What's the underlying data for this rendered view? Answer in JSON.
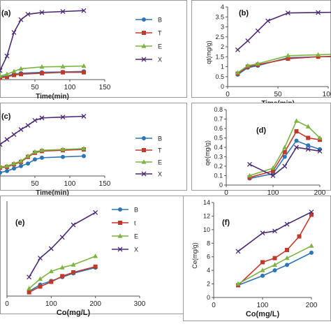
{
  "colors": {
    "B": "#2e75b6",
    "T": "#c0392b",
    "E": "#7cb342",
    "X": "#4b2a73"
  },
  "chart_data": [
    {
      "panel_label": "(a)",
      "type": "line",
      "xlabel": "Time(min)",
      "ylabel": "",
      "xlim": [
        0,
        150
      ],
      "ylim": [
        0,
        4
      ],
      "xticks": [
        "50",
        "100",
        "150"
      ],
      "yticks": [],
      "legend": {
        "placement": "right",
        "entries": [
          "B",
          "T",
          "E",
          "X"
        ]
      },
      "series": [
        {
          "name": "B",
          "x": [
            0,
            10,
            20,
            30,
            60,
            90,
            120
          ],
          "y": [
            0.15,
            0.2,
            0.3,
            0.35,
            0.4,
            0.42,
            0.45
          ]
        },
        {
          "name": "T",
          "x": [
            0,
            10,
            20,
            30,
            60,
            90,
            120
          ],
          "y": [
            0.1,
            0.15,
            0.25,
            0.3,
            0.35,
            0.4,
            0.4
          ]
        },
        {
          "name": "E",
          "x": [
            0,
            10,
            20,
            30,
            60,
            90,
            120
          ],
          "y": [
            0.2,
            0.3,
            0.45,
            0.6,
            0.7,
            0.72,
            0.75
          ]
        },
        {
          "name": "X",
          "x": [
            0,
            10,
            20,
            30,
            40,
            60,
            90,
            120
          ],
          "y": [
            0.5,
            1.3,
            2.6,
            3.3,
            3.6,
            3.7,
            3.75,
            3.8
          ]
        }
      ]
    },
    {
      "panel_label": "(b)",
      "type": "line",
      "xlabel": "Time(min)",
      "ylabel": "qt(mg/g)",
      "xlim": [
        0,
        100
      ],
      "ylim": [
        0,
        4
      ],
      "xticks": [
        "0",
        "50",
        "100"
      ],
      "yticks": [
        "0",
        "0.5",
        "1",
        "1.5",
        "2",
        "2.5",
        "3",
        "3.5",
        "4"
      ],
      "series": [
        {
          "name": "B",
          "x": [
            10,
            20,
            30,
            60,
            90,
            120
          ],
          "y": [
            0.6,
            0.95,
            1.05,
            1.45,
            1.5,
            1.55
          ]
        },
        {
          "name": "T",
          "x": [
            10,
            20,
            30,
            60,
            90,
            120
          ],
          "y": [
            0.65,
            1.0,
            1.1,
            1.4,
            1.5,
            1.5
          ]
        },
        {
          "name": "E",
          "x": [
            10,
            20,
            30,
            60,
            90,
            120
          ],
          "y": [
            0.7,
            1.05,
            1.15,
            1.55,
            1.6,
            1.65
          ]
        },
        {
          "name": "X",
          "x": [
            10,
            20,
            30,
            40,
            60,
            90,
            120
          ],
          "y": [
            1.85,
            2.3,
            2.8,
            3.3,
            3.7,
            3.72,
            3.75
          ]
        }
      ]
    },
    {
      "panel_label": "(c)",
      "type": "line",
      "xlabel": "Time(min)",
      "ylabel": "",
      "xlim": [
        0,
        150
      ],
      "ylim": [
        0,
        4
      ],
      "xticks": [
        "50",
        "100",
        "150"
      ],
      "yticks": [],
      "legend": {
        "placement": "right",
        "entries": [
          "B",
          "T",
          "E",
          "X"
        ]
      },
      "series": [
        {
          "name": "B",
          "x": [
            0,
            10,
            20,
            30,
            40,
            50,
            60,
            90,
            120
          ],
          "y": [
            0.2,
            0.3,
            0.45,
            0.6,
            0.75,
            1.0,
            1.1,
            1.15,
            1.2
          ]
        },
        {
          "name": "T",
          "x": [
            0,
            10,
            20,
            30,
            40,
            50,
            60,
            90,
            120
          ],
          "y": [
            0.5,
            0.55,
            0.7,
            0.85,
            1.15,
            1.4,
            1.5,
            1.55,
            1.6
          ]
        },
        {
          "name": "E",
          "x": [
            0,
            10,
            20,
            30,
            40,
            50,
            60,
            90,
            120
          ],
          "y": [
            0.55,
            0.6,
            0.75,
            0.9,
            1.2,
            1.45,
            1.55,
            1.6,
            1.65
          ]
        },
        {
          "name": "X",
          "x": [
            0,
            10,
            20,
            30,
            40,
            50,
            60,
            90,
            120
          ],
          "y": [
            1.9,
            2.2,
            2.5,
            2.8,
            3.05,
            3.35,
            3.5,
            3.55,
            3.6
          ]
        }
      ]
    },
    {
      "panel_label": "(d)",
      "type": "line",
      "xlabel": "Co(mg/L)",
      "ylabel": "qe(mg/g)",
      "xlim": [
        0,
        200
      ],
      "ylim": [
        0,
        0.8
      ],
      "xticks": [
        "0",
        "100",
        "200"
      ],
      "yticks": [
        "0",
        "0.1",
        "0.2",
        "0.3",
        "0.4",
        "0.5",
        "0.6",
        "0.7",
        "0.8"
      ],
      "series": [
        {
          "name": "B",
          "x": [
            50,
            100,
            125,
            150,
            175,
            200
          ],
          "y": [
            0.07,
            0.12,
            0.3,
            0.47,
            0.42,
            0.38
          ]
        },
        {
          "name": "T",
          "x": [
            50,
            100,
            125,
            150,
            175,
            200
          ],
          "y": [
            0.08,
            0.15,
            0.35,
            0.57,
            0.5,
            0.48
          ]
        },
        {
          "name": "E",
          "x": [
            50,
            100,
            125,
            150,
            175,
            200
          ],
          "y": [
            0.1,
            0.18,
            0.4,
            0.68,
            0.62,
            0.5
          ]
        },
        {
          "name": "X",
          "x": [
            50,
            100,
            125,
            150,
            175,
            200
          ],
          "y": [
            0.22,
            0.1,
            0.2,
            0.4,
            0.38,
            0.36
          ]
        }
      ]
    },
    {
      "panel_label": "(e)",
      "type": "line",
      "xlabel": "Co(mg/L)",
      "ylabel": "",
      "xlim": [
        0,
        300
      ],
      "ylim": [
        0,
        10
      ],
      "xticks": [
        "0",
        "100",
        "200",
        "300"
      ],
      "yticks": [],
      "legend": {
        "placement": "right",
        "entries": [
          "B",
          "t",
          "E",
          "X"
        ]
      },
      "series": [
        {
          "name": "B",
          "x": [
            50,
            75,
            100,
            125,
            150,
            200
          ],
          "y": [
            0.5,
            1.2,
            1.6,
            2.0,
            2.4,
            3.0
          ]
        },
        {
          "name": "T",
          "x": [
            50,
            75,
            100,
            125,
            150,
            200
          ],
          "y": [
            0.4,
            1.0,
            1.5,
            2.1,
            2.5,
            3.1
          ]
        },
        {
          "name": "E",
          "x": [
            50,
            75,
            100,
            125,
            150,
            200
          ],
          "y": [
            0.8,
            1.8,
            2.6,
            3.0,
            3.3,
            4.2
          ]
        },
        {
          "name": "X",
          "x": [
            50,
            75,
            100,
            125,
            150,
            200
          ],
          "y": [
            2.0,
            4.0,
            5.0,
            6.2,
            7.5,
            8.8
          ]
        }
      ]
    },
    {
      "panel_label": "(f)",
      "type": "line",
      "xlabel": "Co(mg/L)",
      "ylabel": "Ce(mg/g)",
      "xlim": [
        0,
        200
      ],
      "ylim": [
        0,
        14
      ],
      "xticks": [
        "0",
        "100",
        "200"
      ],
      "yticks": [
        "0",
        "2",
        "4",
        "6",
        "8",
        "10",
        "12",
        "14"
      ],
      "series": [
        {
          "name": "B",
          "x": [
            50,
            100,
            125,
            150,
            200
          ],
          "y": [
            1.8,
            3.2,
            4.0,
            4.8,
            6.6
          ]
        },
        {
          "name": "T",
          "x": [
            50,
            100,
            125,
            150,
            175,
            200
          ],
          "y": [
            1.8,
            5.2,
            5.8,
            7.0,
            9.0,
            12.2
          ]
        },
        {
          "name": "E",
          "x": [
            50,
            100,
            125,
            150,
            200
          ],
          "y": [
            2.0,
            4.0,
            4.8,
            5.8,
            7.6
          ]
        },
        {
          "name": "X",
          "x": [
            50,
            100,
            125,
            150,
            200
          ],
          "y": [
            6.8,
            9.5,
            9.8,
            10.8,
            12.6
          ]
        }
      ]
    }
  ]
}
